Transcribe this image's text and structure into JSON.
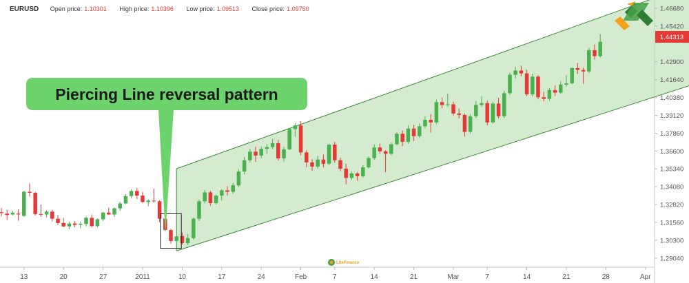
{
  "header": {
    "symbol": "EURUSD",
    "open_label": "Open price:",
    "open_value": "1.10301",
    "high_label": "High price:",
    "high_value": "1.10396",
    "low_label": "Low price:",
    "low_value": "1.09513",
    "close_label": "Close price:",
    "close_value": "1.09750"
  },
  "callout": {
    "text": "Piercing Line reversal pattern"
  },
  "watermark": {
    "text": "LiteFinance"
  },
  "colors": {
    "bull": "#4caf50",
    "bear": "#e53935",
    "channel_fill": "#d4ebd0",
    "channel_line": "#3d8b37",
    "callout": "#6dd36d"
  },
  "chart_data": {
    "type": "candlestick",
    "y_axis": {
      "ticks": [
        "1.46680",
        "1.45420",
        "1.42900",
        "1.41640",
        "1.40380",
        "1.39120",
        "1.37860",
        "1.36600",
        "1.35340",
        "1.34080",
        "1.32820",
        "1.31560",
        "1.30300",
        "1.29040"
      ],
      "range": [
        1.284,
        1.4726
      ]
    },
    "x_axis": {
      "ticks": [
        "13",
        "20",
        "27",
        "2011",
        "10",
        "17",
        "24",
        "Feb",
        "7",
        "14",
        "21",
        "Mar",
        "7",
        "14",
        "21",
        "28",
        "Apr"
      ],
      "tick_index": [
        4,
        11,
        18,
        25,
        32,
        39,
        46,
        53,
        59,
        66,
        73,
        80,
        86,
        93,
        100,
        107,
        114
      ]
    },
    "current_price": "1.44313",
    "candles": [
      [
        1.3228,
        1.3258,
        1.3198,
        1.3222
      ],
      [
        1.3218,
        1.3245,
        1.3172,
        1.3208
      ],
      [
        1.3212,
        1.3238,
        1.3205,
        1.3225
      ],
      [
        1.3218,
        1.3248,
        1.3168,
        1.3212
      ],
      [
        1.3202,
        1.338,
        1.3195,
        1.3372
      ],
      [
        1.3372,
        1.3432,
        1.3338,
        1.3365
      ],
      [
        1.3365,
        1.3372,
        1.3205,
        1.3215
      ],
      [
        1.3215,
        1.3282,
        1.3195,
        1.3212
      ],
      [
        1.3212,
        1.3242,
        1.319,
        1.3232
      ],
      [
        1.3232,
        1.3245,
        1.3162,
        1.3182
      ],
      [
        1.3182,
        1.3208,
        1.3138,
        1.3152
      ],
      [
        1.3152,
        1.3188,
        1.3122,
        1.3128
      ],
      [
        1.3128,
        1.3162,
        1.3108,
        1.3148
      ],
      [
        1.3148,
        1.3165,
        1.3122,
        1.3138
      ],
      [
        1.3138,
        1.3162,
        1.3115,
        1.3145
      ],
      [
        1.3145,
        1.3198,
        1.3128,
        1.3188
      ],
      [
        1.3188,
        1.3212,
        1.312,
        1.313
      ],
      [
        1.313,
        1.3185,
        1.3122,
        1.3178
      ],
      [
        1.3178,
        1.323,
        1.3165,
        1.3225
      ],
      [
        1.3225,
        1.326,
        1.3208,
        1.3212
      ],
      [
        1.3212,
        1.3262,
        1.3195,
        1.3255
      ],
      [
        1.3255,
        1.3302,
        1.3238,
        1.329
      ],
      [
        1.329,
        1.3355,
        1.3285,
        1.3342
      ],
      [
        1.3342,
        1.339,
        1.3325,
        1.3378
      ],
      [
        1.3378,
        1.34,
        1.332,
        1.3345
      ],
      [
        1.3345,
        1.3372,
        1.3295,
        1.33
      ],
      [
        1.33,
        1.332,
        1.327,
        1.331
      ],
      [
        1.331,
        1.3395,
        1.3295,
        1.3305
      ],
      [
        1.3305,
        1.3312,
        1.3158,
        1.3182
      ],
      [
        1.3182,
        1.3212,
        1.3095,
        1.3102
      ],
      [
        1.3102,
        1.311,
        1.3005,
        1.3025
      ],
      [
        1.3025,
        1.3055,
        1.2988,
        1.3058
      ],
      [
        1.306,
        1.3085,
        1.3,
        1.301
      ],
      [
        1.301,
        1.3075,
        1.2995,
        1.3045
      ],
      [
        1.3045,
        1.319,
        1.3035,
        1.3182
      ],
      [
        1.3182,
        1.3318,
        1.3165,
        1.3305
      ],
      [
        1.3305,
        1.3385,
        1.329,
        1.3368
      ],
      [
        1.3368,
        1.3378,
        1.3275,
        1.3292
      ],
      [
        1.3292,
        1.3355,
        1.3282,
        1.3345
      ],
      [
        1.3345,
        1.339,
        1.331,
        1.3382
      ],
      [
        1.3382,
        1.3412,
        1.3345,
        1.3372
      ],
      [
        1.3372,
        1.3435,
        1.3358,
        1.3418
      ],
      [
        1.3418,
        1.3532,
        1.3405,
        1.3515
      ],
      [
        1.3515,
        1.3618,
        1.3495,
        1.3595
      ],
      [
        1.3595,
        1.3675,
        1.358,
        1.3655
      ],
      [
        1.3655,
        1.369,
        1.3582,
        1.3628
      ],
      [
        1.3628,
        1.3692,
        1.3612,
        1.3675
      ],
      [
        1.3675,
        1.371,
        1.364,
        1.3688
      ],
      [
        1.3688,
        1.3745,
        1.3672,
        1.3715
      ],
      [
        1.3715,
        1.374,
        1.3592,
        1.3608
      ],
      [
        1.3608,
        1.369,
        1.3585,
        1.3672
      ],
      [
        1.3672,
        1.3822,
        1.3665,
        1.3815
      ],
      [
        1.3815,
        1.3858,
        1.3762,
        1.384
      ],
      [
        1.384,
        1.387,
        1.363,
        1.365
      ],
      [
        1.365,
        1.3665,
        1.3545,
        1.358
      ],
      [
        1.358,
        1.3602,
        1.352,
        1.355
      ],
      [
        1.355,
        1.3625,
        1.3535,
        1.36
      ],
      [
        1.36,
        1.3635,
        1.3545,
        1.357
      ],
      [
        1.357,
        1.3712,
        1.356,
        1.3705
      ],
      [
        1.3705,
        1.3725,
        1.3578,
        1.3595
      ],
      [
        1.3595,
        1.3612,
        1.3518,
        1.3535
      ],
      [
        1.3535,
        1.357,
        1.3425,
        1.347
      ],
      [
        1.347,
        1.3515,
        1.3455,
        1.3502
      ],
      [
        1.3502,
        1.3512,
        1.345,
        1.3482
      ],
      [
        1.3482,
        1.356,
        1.3472,
        1.3545
      ],
      [
        1.3545,
        1.3622,
        1.3535,
        1.361
      ],
      [
        1.361,
        1.3708,
        1.3598,
        1.3685
      ],
      [
        1.3685,
        1.3712,
        1.364,
        1.3658
      ],
      [
        1.3658,
        1.3665,
        1.351,
        1.364
      ],
      [
        1.364,
        1.3722,
        1.363,
        1.3708
      ],
      [
        1.3708,
        1.3792,
        1.37,
        1.3782
      ],
      [
        1.3782,
        1.3805,
        1.3695,
        1.3725
      ],
      [
        1.3725,
        1.3842,
        1.371,
        1.3818
      ],
      [
        1.3818,
        1.3845,
        1.373,
        1.3765
      ],
      [
        1.3765,
        1.3855,
        1.3752,
        1.3835
      ],
      [
        1.3835,
        1.3905,
        1.382,
        1.388
      ],
      [
        1.388,
        1.392,
        1.379,
        1.3862
      ],
      [
        1.3862,
        1.4022,
        1.385,
        1.4005
      ],
      [
        1.4005,
        1.4038,
        1.3962,
        1.3985
      ],
      [
        1.3985,
        1.4065,
        1.3972,
        1.399
      ],
      [
        1.399,
        1.4008,
        1.391,
        1.3925
      ],
      [
        1.3925,
        1.396,
        1.389,
        1.3915
      ],
      [
        1.3915,
        1.3925,
        1.3762,
        1.3795
      ],
      [
        1.3795,
        1.392,
        1.3782,
        1.3905
      ],
      [
        1.3905,
        1.4012,
        1.3892,
        1.3985
      ],
      [
        1.3985,
        1.4048,
        1.3972,
        1.3998
      ],
      [
        1.3998,
        1.4015,
        1.3842,
        1.3862
      ],
      [
        1.3862,
        1.4008,
        1.3852,
        1.3995
      ],
      [
        1.3995,
        1.4035,
        1.389,
        1.3905
      ],
      [
        1.3905,
        1.4085,
        1.3892,
        1.4068
      ],
      [
        1.4068,
        1.4212,
        1.4055,
        1.4198
      ],
      [
        1.4198,
        1.4255,
        1.4172,
        1.4228
      ],
      [
        1.4228,
        1.4262,
        1.4188,
        1.4208
      ],
      [
        1.4208,
        1.4235,
        1.4048,
        1.406
      ],
      [
        1.406,
        1.4205,
        1.4045,
        1.4185
      ],
      [
        1.4185,
        1.4195,
        1.4025,
        1.404
      ],
      [
        1.404,
        1.4078,
        1.401,
        1.4028
      ],
      [
        1.4028,
        1.4105,
        1.4015,
        1.409
      ],
      [
        1.409,
        1.4125,
        1.4048,
        1.4072
      ],
      [
        1.4072,
        1.4155,
        1.4065,
        1.4128
      ],
      [
        1.4128,
        1.4195,
        1.4115,
        1.4138
      ],
      [
        1.4138,
        1.4252,
        1.413,
        1.4245
      ],
      [
        1.4245,
        1.4282,
        1.4205,
        1.4232
      ],
      [
        1.4232,
        1.4248,
        1.4135,
        1.4222
      ],
      [
        1.4222,
        1.4388,
        1.421,
        1.4372
      ],
      [
        1.4372,
        1.4412,
        1.4305,
        1.433
      ],
      [
        1.433,
        1.4485,
        1.432,
        1.4431
      ]
    ]
  }
}
